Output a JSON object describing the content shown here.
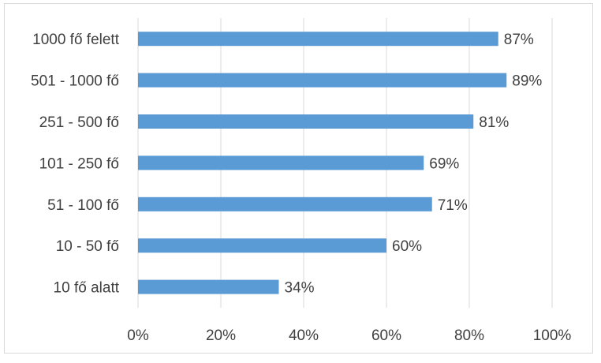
{
  "chart_data": {
    "type": "bar",
    "orientation": "horizontal",
    "title": "",
    "xlabel": "",
    "ylabel": "",
    "categories": [
      "1000 fő felett",
      "501 - 1000 fő",
      "251 - 500 fő",
      "101 - 250 fő",
      "51 - 100 fő",
      "10 - 50 fő",
      "10 fő alatt"
    ],
    "values": [
      87,
      89,
      81,
      69,
      71,
      60,
      34
    ],
    "value_labels": [
      "87%",
      "89%",
      "81%",
      "69%",
      "71%",
      "60%",
      "34%"
    ],
    "xlim": [
      0,
      100
    ],
    "x_ticks": [
      0,
      20,
      40,
      60,
      80,
      100
    ],
    "x_tick_labels": [
      "0%",
      "20%",
      "40%",
      "60%",
      "80%",
      "100%"
    ],
    "grid": "vertical",
    "legend": "none",
    "colors": {
      "bar": "#5b9bd5",
      "grid": "#d9d9d9",
      "text": "#404040"
    }
  }
}
